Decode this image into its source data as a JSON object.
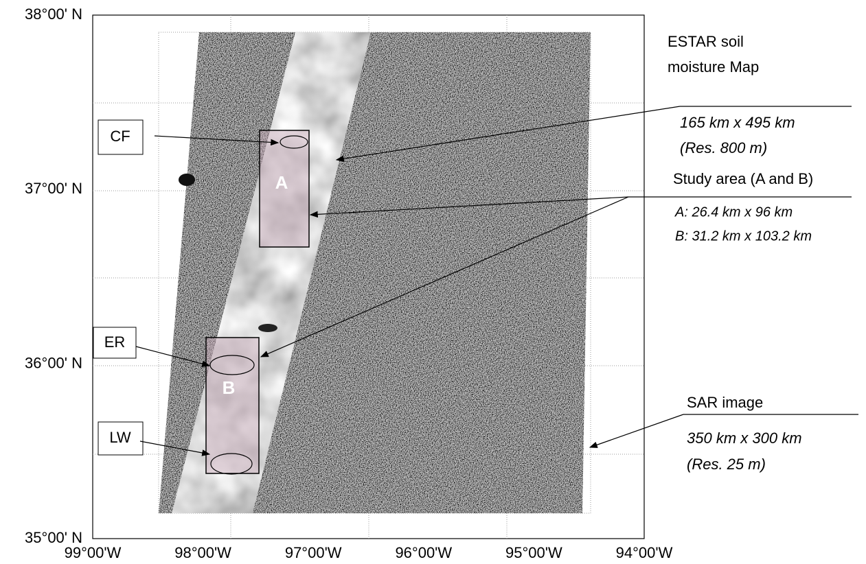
{
  "map": {
    "lat_labels": [
      "38°00' N",
      "37°00' N",
      "36°00' N",
      "35°00' N"
    ],
    "lon_labels": [
      "99°00'W",
      "98°00'W",
      "97°00'W",
      "96°00'W",
      "95°00'W",
      "94°00'W"
    ],
    "area_labels": [
      "A",
      "B"
    ],
    "site_labels": [
      "CF",
      "ER",
      "LW"
    ],
    "estar": {
      "title": [
        "ESTAR soil",
        "moisture Map"
      ],
      "size": "165 km x 495 km",
      "resolution": "(Res. 800 m)"
    },
    "study_area": {
      "title": "Study area (A and B)",
      "a": "A: 26.4 km x 96 km",
      "b": "B: 31.2 km x 103.2 km"
    },
    "sar": {
      "title": "SAR image",
      "size": "350 km x 300 km",
      "resolution": "(Res. 25 m)"
    }
  }
}
